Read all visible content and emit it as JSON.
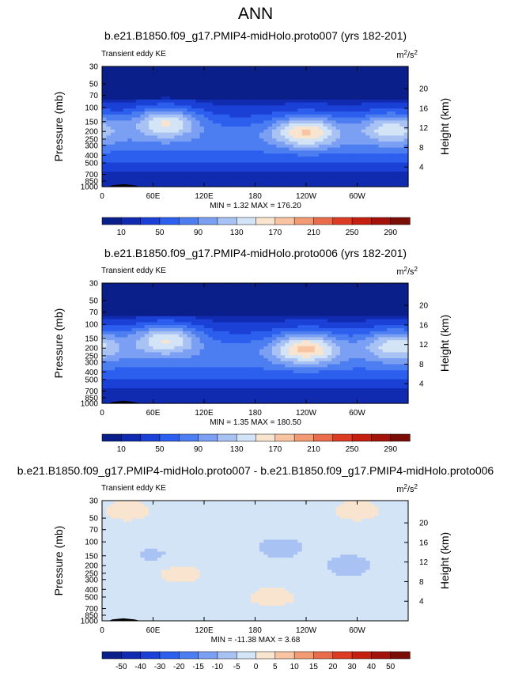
{
  "main_title": "ANN",
  "chart_data": [
    {
      "type": "contour",
      "title": "b.e21.B1850.f09_g17.PMIP4-midHolo.proto007 (yrs 182-201)",
      "left_label": "Transient eddy KE",
      "units": {
        "base": "m",
        "exp": "2",
        "sep": "/s",
        "exp2": "2"
      },
      "ylabel": "Pressure (mb)",
      "ylabel_right": "Height (km)",
      "x_ticks": [
        "0",
        "60E",
        "120E",
        "180",
        "120W",
        "60W"
      ],
      "x_tick_values": [
        0,
        60,
        120,
        180,
        240,
        300
      ],
      "xlim": [
        0,
        360
      ],
      "y_ticks": [
        "30",
        "50",
        "70",
        "100",
        "150",
        "200",
        "250",
        "300",
        "400",
        "500",
        "700",
        "850",
        "1000"
      ],
      "y_tick_values": [
        30,
        50,
        70,
        100,
        150,
        200,
        250,
        300,
        400,
        500,
        700,
        850,
        1000
      ],
      "ylim": [
        30,
        1000
      ],
      "height_ticks": [
        "4",
        "8",
        "12",
        "16",
        "20"
      ],
      "height_tick_values": [
        4,
        8,
        12,
        16,
        20
      ],
      "stats": "MIN =   1.32  MAX = 176.20",
      "colorbar_labels": [
        "10",
        "50",
        "90",
        "130",
        "170",
        "210",
        "250",
        "290"
      ],
      "colorbar_colors": [
        "#0b1f8a",
        "#102bb0",
        "#1a40d6",
        "#2d5fee",
        "#4c7ef2",
        "#7b9ff3",
        "#a8c2f4",
        "#d3e4f6",
        "#f9e5cf",
        "#f8c4a2",
        "#f19a73",
        "#ea6c4a",
        "#dd3b22",
        "#c51f10",
        "#a3130a",
        "#7a0e06"
      ],
      "jets": [
        {
          "lon": 75,
          "p": 150,
          "peak": 170
        },
        {
          "lon": 240,
          "p": 200,
          "peak": 176
        },
        {
          "lon": 340,
          "p": 180,
          "peak": 150
        }
      ],
      "background": 60
    },
    {
      "type": "contour",
      "title": "b.e21.B1850.f09_g17.PMIP4-midHolo.proto006 (yrs 182-201)",
      "left_label": "Transient eddy KE",
      "units": {
        "base": "m",
        "exp": "2",
        "sep": "/s",
        "exp2": "2"
      },
      "ylabel": "Pressure (mb)",
      "ylabel_right": "Height (km)",
      "x_ticks": [
        "0",
        "60E",
        "120E",
        "180",
        "120W",
        "60W"
      ],
      "x_tick_values": [
        0,
        60,
        120,
        180,
        240,
        300
      ],
      "xlim": [
        0,
        360
      ],
      "y_ticks": [
        "30",
        "50",
        "70",
        "100",
        "150",
        "200",
        "250",
        "300",
        "400",
        "500",
        "700",
        "850",
        "1000"
      ],
      "y_tick_values": [
        30,
        50,
        70,
        100,
        150,
        200,
        250,
        300,
        400,
        500,
        700,
        850,
        1000
      ],
      "ylim": [
        30,
        1000
      ],
      "height_ticks": [
        "4",
        "8",
        "12",
        "16",
        "20"
      ],
      "height_tick_values": [
        4,
        8,
        12,
        16,
        20
      ],
      "stats": "MIN =   1.35  MAX = 180.50",
      "colorbar_labels": [
        "10",
        "50",
        "90",
        "130",
        "170",
        "210",
        "250",
        "290"
      ],
      "colorbar_colors": [
        "#0b1f8a",
        "#102bb0",
        "#1a40d6",
        "#2d5fee",
        "#4c7ef2",
        "#7b9ff3",
        "#a8c2f4",
        "#d3e4f6",
        "#f9e5cf",
        "#f8c4a2",
        "#f19a73",
        "#ea6c4a",
        "#dd3b22",
        "#c51f10",
        "#a3130a",
        "#7a0e06"
      ],
      "jets": [
        {
          "lon": 75,
          "p": 150,
          "peak": 168
        },
        {
          "lon": 240,
          "p": 200,
          "peak": 180
        },
        {
          "lon": 345,
          "p": 180,
          "peak": 152
        }
      ],
      "background": 60
    },
    {
      "type": "contour",
      "title": "b.e21.B1850.f09_g17.PMIP4-midHolo.proto007 - b.e21.B1850.f09_g17.PMIP4-midHolo.proto006",
      "left_label": "Transient eddy KE",
      "units": {
        "base": "m",
        "exp": "2",
        "sep": "/s",
        "exp2": "2"
      },
      "ylabel": "Pressure (mb)",
      "ylabel_right": "Height (km)",
      "x_ticks": [
        "0",
        "60E",
        "120E",
        "180",
        "120W",
        "60W"
      ],
      "x_tick_values": [
        0,
        60,
        120,
        180,
        240,
        300
      ],
      "xlim": [
        0,
        360
      ],
      "y_ticks": [
        "30",
        "50",
        "70",
        "100",
        "150",
        "200",
        "250",
        "300",
        "400",
        "500",
        "700",
        "850",
        "1000"
      ],
      "y_tick_values": [
        30,
        50,
        70,
        100,
        150,
        200,
        250,
        300,
        400,
        500,
        700,
        850,
        1000
      ],
      "ylim": [
        30,
        1000
      ],
      "height_ticks": [
        "4",
        "8",
        "12",
        "16",
        "20"
      ],
      "height_tick_values": [
        4,
        8,
        12,
        16,
        20
      ],
      "stats": "MIN = -11.38  MAX =   3.68",
      "colorbar_labels": [
        "-50",
        "-40",
        "-30",
        "-20",
        "-15",
        "-10",
        "-5",
        "0",
        "5",
        "10",
        "15",
        "20",
        "30",
        "40",
        "50"
      ],
      "colorbar_colors": [
        "#0b1f8a",
        "#102bb0",
        "#1a40d6",
        "#2d5fee",
        "#4c7ef2",
        "#7b9ff3",
        "#a8c2f4",
        "#d3e4f6",
        "#f9e5cf",
        "#f8c4a2",
        "#f19a73",
        "#ea6c4a",
        "#dd3b22",
        "#c51f10",
        "#a3130a",
        "#7a0e06"
      ],
      "diff_regions": [
        {
          "lon": 90,
          "p": 250,
          "value": 2
        },
        {
          "lon": 30,
          "p": 40,
          "value": 2
        },
        {
          "lon": 300,
          "p": 40,
          "value": 2
        },
        {
          "lon": 200,
          "p": 500,
          "value": 2
        },
        {
          "lon": 210,
          "p": 120,
          "value": -8
        },
        {
          "lon": 290,
          "p": 200,
          "value": -8
        },
        {
          "lon": 60,
          "p": 150,
          "value": -6
        }
      ]
    }
  ]
}
